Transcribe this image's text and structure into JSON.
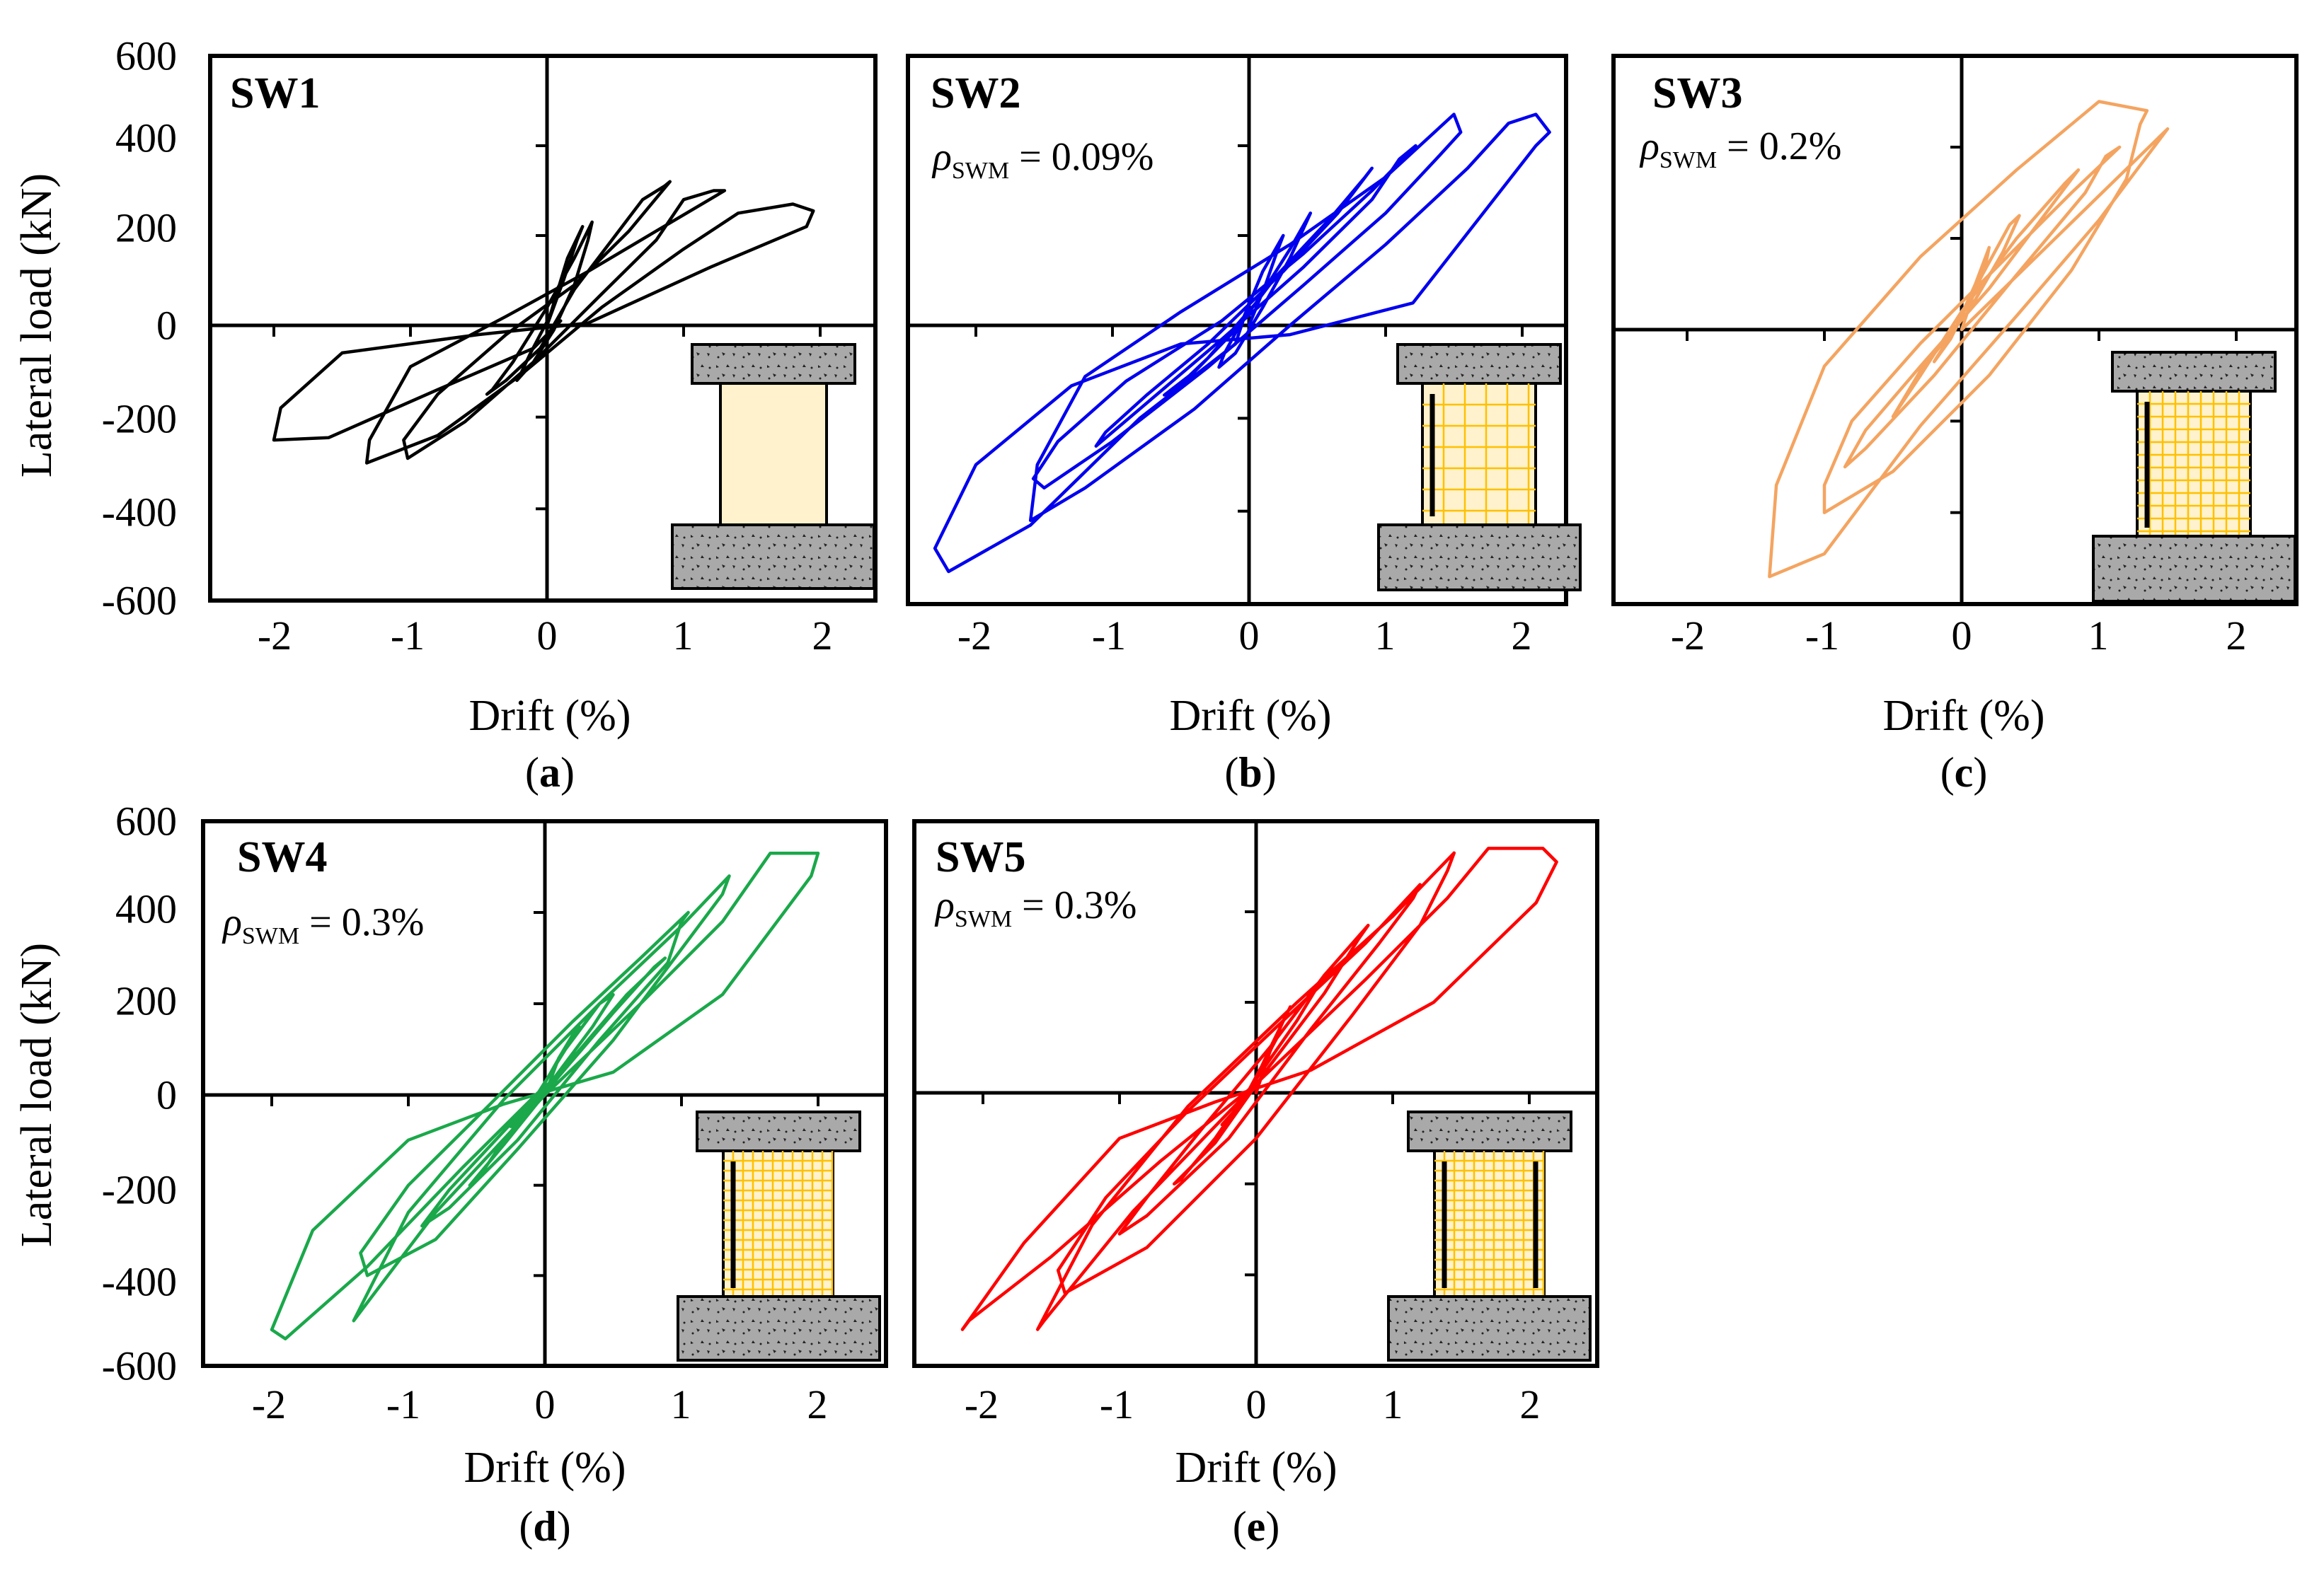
{
  "figure": {
    "ylabel": "Lateral load (kN)",
    "xlabel": "Drift (%)",
    "y_ticks": [
      "600",
      "400",
      "200",
      "0",
      "-200",
      "-400",
      "-600"
    ],
    "x_ticks": [
      "-2",
      "-1",
      "0",
      "1",
      "2"
    ]
  },
  "chart_data": [
    {
      "type": "line",
      "id": "a",
      "caption_open": "(",
      "caption_letter": "a",
      "caption_close": ")",
      "title": "SW1",
      "rho_label": "",
      "rho_sub": "",
      "rho_value": "",
      "xlabel": "Drift (%)",
      "ylabel": "Lateral load (kN)",
      "xlim": [
        -2.5,
        2.5
      ],
      "ylim": [
        -600,
        600
      ],
      "color": "#000000",
      "mesh": "none",
      "series": [
        {
          "name": "SW1",
          "x": [
            0,
            0.12,
            0.22,
            0.26,
            0.15,
            0.02,
            -0.12,
            -0.2,
            -0.22,
            -0.1,
            0.05,
            0.2,
            0.3,
            0.33,
            0.2,
            0,
            -0.25,
            -0.4,
            -0.44,
            -0.3,
            -0.05,
            0.2,
            0.5,
            0.7,
            0.86,
            0.9,
            0.6,
            0.2,
            -0.3,
            -0.8,
            -1.05,
            -1.02,
            -0.6,
            -0.1,
            0.4,
            0.8,
            1.0,
            1.22,
            1.3,
            0.8,
            0.3,
            -0.3,
            -1.0,
            -1.3,
            -1.32,
            -0.8,
            -0.2,
            0.4,
            1.0,
            1.4,
            1.8,
            1.95,
            1.9,
            1.2,
            0.3,
            -0.5,
            -1.5,
            -1.95,
            -2.0,
            -1.6,
            -0.8,
            -0.1,
            0.1
          ],
          "y": [
            0,
            100,
            190,
            220,
            150,
            20,
            -60,
            -110,
            -120,
            -80,
            -10,
            90,
            190,
            230,
            150,
            40,
            -80,
            -140,
            -150,
            -120,
            -50,
            80,
            200,
            280,
            310,
            320,
            210,
            90,
            -20,
            -150,
            -250,
            -290,
            -210,
            -80,
            70,
            190,
            280,
            300,
            300,
            210,
            120,
            20,
            -90,
            -250,
            -300,
            -240,
            -110,
            40,
            170,
            250,
            270,
            255,
            220,
            130,
            5,
            -20,
            -60,
            -180,
            -250,
            -245,
            -140,
            -50,
            10
          ]
        }
      ]
    },
    {
      "type": "line",
      "id": "b",
      "caption_open": "(",
      "caption_letter": "b",
      "caption_close": ")",
      "title": "SW2",
      "rho_label": "ρ",
      "rho_sub": "SWM",
      "rho_value": " = 0.09%",
      "xlabel": "Drift (%)",
      "ylabel": "Lateral load (kN)",
      "xlim": [
        -2.5,
        2.5
      ],
      "ylim": [
        -600,
        600
      ],
      "color": "#0000ee",
      "mesh": "sparse",
      "series": [
        {
          "name": "SW2",
          "x": [
            0,
            0.12,
            0.2,
            0.25,
            0.1,
            -0.05,
            -0.18,
            -0.22,
            -0.1,
            0.1,
            0.3,
            0.42,
            0.45,
            0.3,
            0.05,
            -0.3,
            -0.55,
            -0.62,
            -0.4,
            -0.1,
            0.2,
            0.6,
            0.85,
            0.9,
            0.65,
            0.25,
            -0.3,
            -0.75,
            -1.05,
            -1.12,
            -0.8,
            -0.2,
            0.4,
            0.9,
            1.1,
            1.22,
            0.9,
            0.4,
            -0.2,
            -0.9,
            -1.4,
            -1.58,
            -1.5,
            -1.0,
            -0.3,
            0.4,
            1.0,
            1.4,
            1.55,
            1.5,
            1.0,
            0.3,
            -0.5,
            -1.2,
            -1.55,
            -1.6,
            -1.2,
            -0.4,
            0.3,
            1.0,
            1.6,
            1.9,
            2.1,
            2.2,
            2.1,
            1.2,
            0.3,
            -0.5,
            -1.3,
            -2.0,
            -2.3,
            -2.2,
            -1.6,
            -0.8,
            -0.1,
            0.0
          ],
          "y": [
            0,
            90,
            160,
            200,
            120,
            10,
            -60,
            -90,
            -60,
            40,
            150,
            230,
            250,
            170,
            50,
            -70,
            -140,
            -150,
            -100,
            -10,
            110,
            240,
            330,
            350,
            250,
            120,
            -40,
            -150,
            -230,
            -260,
            -180,
            -30,
            130,
            280,
            370,
            400,
            300,
            160,
            10,
            -120,
            -250,
            -330,
            -350,
            -250,
            -90,
            90,
            250,
            380,
            430,
            470,
            330,
            180,
            30,
            -110,
            -300,
            -420,
            -350,
            -180,
            0,
            180,
            350,
            450,
            470,
            430,
            400,
            50,
            -20,
            -40,
            -130,
            -300,
            -480,
            -530,
            -430,
            -200,
            -40,
            50
          ]
        }
      ]
    },
    {
      "type": "line",
      "id": "c",
      "caption_open": "(",
      "caption_letter": "c",
      "caption_close": ")",
      "title": "SW3",
      "rho_label": "ρ",
      "rho_sub": "SWM",
      "rho_value": " = 0.2%",
      "xlabel": "Drift (%)",
      "ylabel": "Lateral load (kN)",
      "xlim": [
        -2.5,
        2.5
      ],
      "ylim": [
        -600,
        600
      ],
      "color": "#f4a460",
      "mesh": "medium",
      "series": [
        {
          "name": "SW3",
          "x": [
            0,
            0.1,
            0.18,
            0.2,
            0.1,
            -0.05,
            -0.18,
            -0.2,
            -0.08,
            0.15,
            0.35,
            0.42,
            0.3,
            0.05,
            -0.3,
            -0.48,
            -0.5,
            -0.3,
            0.0,
            0.4,
            0.75,
            0.85,
            0.6,
            0.2,
            -0.3,
            -0.7,
            -0.85,
            -0.7,
            -0.2,
            0.4,
            0.9,
            1.05,
            1.15,
            0.8,
            0.3,
            -0.3,
            -0.8,
            -1.0,
            -1.0,
            -0.5,
            0.2,
            0.8,
            1.2,
            1.3,
            1.35,
            1.0,
            0.4,
            -0.3,
            -1.0,
            -1.35,
            -1.4,
            -1.0,
            -0.3,
            0.4,
            1.0,
            1.4,
            1.5,
            0.0
          ],
          "y": [
            0,
            90,
            150,
            180,
            100,
            0,
            -60,
            -70,
            -20,
            120,
            230,
            250,
            170,
            40,
            -90,
            -180,
            -190,
            -100,
            40,
            200,
            320,
            350,
            250,
            90,
            -80,
            -220,
            -300,
            -260,
            -100,
            120,
            300,
            380,
            400,
            300,
            150,
            -30,
            -200,
            -340,
            -400,
            -310,
            -100,
            130,
            330,
            450,
            480,
            500,
            350,
            160,
            -80,
            -340,
            -540,
            -490,
            -210,
            30,
            240,
            400,
            440,
            0
          ]
        }
      ]
    },
    {
      "type": "line",
      "id": "d",
      "caption_open": "(",
      "caption_letter": "d",
      "caption_close": ")",
      "title": "SW4",
      "rho_label": "ρ",
      "rho_sub": "SWM",
      "rho_value": " = 0.3%",
      "xlabel": "Drift (%)",
      "ylabel": "Lateral load (kN)",
      "xlim": [
        -2.5,
        2.5
      ],
      "ylim": [
        -600,
        600
      ],
      "color": "#1aa84a",
      "mesh": "dense",
      "series": [
        {
          "name": "SW4",
          "x": [
            0,
            0.1,
            0.2,
            0.25,
            0.12,
            -0.05,
            -0.2,
            -0.25,
            -0.1,
            0.15,
            0.4,
            0.5,
            0.35,
            0.05,
            -0.3,
            -0.5,
            -0.55,
            -0.3,
            0.1,
            0.5,
            0.8,
            0.88,
            0.6,
            0.2,
            -0.3,
            -0.7,
            -0.9,
            -0.7,
            -0.2,
            0.4,
            0.9,
            1.0,
            1.05,
            0.7,
            0.2,
            -0.4,
            -1.0,
            -1.35,
            -1.3,
            -0.8,
            -0.2,
            0.5,
            1.0,
            1.3,
            1.35,
            1.0,
            0.4,
            -0.3,
            -1.0,
            -1.4,
            -1.35,
            -0.8,
            0.0,
            0.7,
            1.3,
            1.65,
            2.0,
            1.95,
            1.3,
            0.5,
            -0.3,
            -1.0,
            -1.7,
            -2.0,
            -1.9,
            -1.3,
            -0.6,
            0.0
          ],
          "y": [
            0,
            80,
            130,
            150,
            90,
            0,
            -60,
            -70,
            -20,
            100,
            200,
            220,
            150,
            30,
            -100,
            -190,
            -200,
            -110,
            40,
            180,
            280,
            300,
            220,
            80,
            -80,
            -210,
            -290,
            -250,
            -100,
            120,
            290,
            380,
            400,
            300,
            160,
            -20,
            -200,
            -350,
            -400,
            -320,
            -120,
            120,
            320,
            440,
            480,
            370,
            200,
            -10,
            -260,
            -500,
            -480,
            -260,
            0,
            200,
            380,
            530,
            530,
            480,
            220,
            50,
            -20,
            -100,
            -300,
            -520,
            -540,
            -380,
            -160,
            20
          ]
        }
      ]
    },
    {
      "type": "line",
      "id": "e",
      "caption_open": "(",
      "caption_letter": "e",
      "caption_close": ")",
      "title": "SW5",
      "rho_label": "ρ",
      "rho_sub": "SWM",
      "rho_value": " = 0.3%",
      "xlabel": "Drift (%)",
      "ylabel": "Lateral load (kN)",
      "xlim": [
        -2.5,
        2.5
      ],
      "ylim": [
        -600,
        600
      ],
      "color": "#ff0000",
      "mesh": "dense",
      "series": [
        {
          "name": "SW5",
          "x": [
            0,
            0.1,
            0.2,
            0.25,
            0.12,
            -0.05,
            -0.2,
            -0.25,
            -0.1,
            0.15,
            0.4,
            0.48,
            0.3,
            0.0,
            -0.3,
            -0.55,
            -0.6,
            -0.3,
            0.1,
            0.5,
            0.75,
            0.82,
            0.5,
            0.1,
            -0.4,
            -0.8,
            -1.0,
            -0.8,
            -0.2,
            0.4,
            0.9,
            1.15,
            1.2,
            0.8,
            0.2,
            -0.5,
            -1.1,
            -1.45,
            -1.4,
            -0.8,
            0.0,
            0.7,
            1.2,
            1.4,
            1.45,
            1.0,
            0.3,
            -0.5,
            -1.2,
            -1.6,
            -1.55,
            -0.9,
            0.0,
            0.8,
            1.4,
            1.7,
            2.1,
            2.2,
            2.05,
            1.3,
            0.4,
            -0.3,
            -1.0,
            -1.7,
            -2.15,
            -2.1,
            -1.5,
            -0.7,
            0.0
          ],
          "y": [
            0,
            90,
            160,
            190,
            110,
            0,
            -60,
            -70,
            -20,
            120,
            220,
            250,
            160,
            30,
            -100,
            -190,
            -200,
            -110,
            60,
            220,
            340,
            370,
            260,
            100,
            -80,
            -230,
            -310,
            -270,
            -100,
            140,
            330,
            430,
            460,
            330,
            160,
            -40,
            -230,
            -390,
            -440,
            -340,
            -100,
            170,
            370,
            490,
            530,
            390,
            200,
            -30,
            -290,
            -520,
            -500,
            -260,
            20,
            250,
            430,
            540,
            540,
            510,
            420,
            200,
            50,
            -20,
            -100,
            -330,
            -520,
            -500,
            -360,
            -150,
            20
          ]
        }
      ]
    }
  ]
}
